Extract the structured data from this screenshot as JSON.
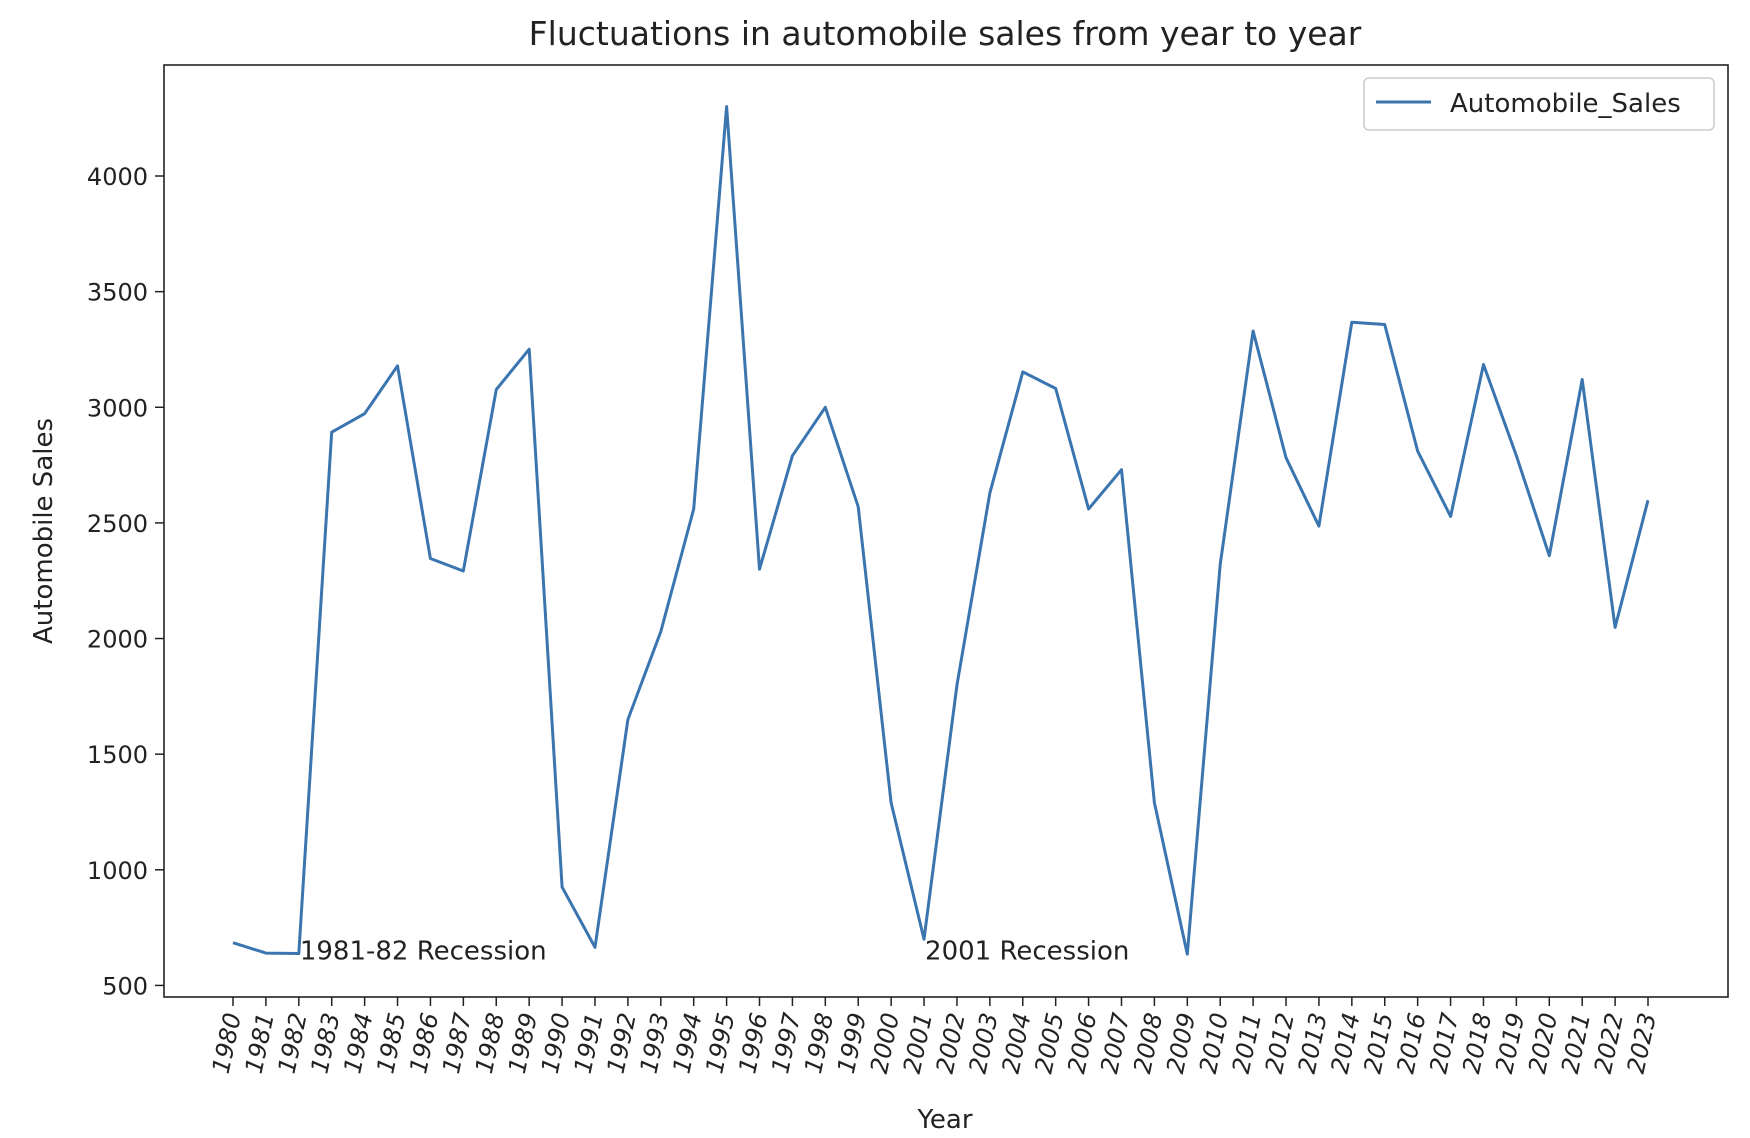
{
  "chart_data": {
    "type": "line",
    "title": "Fluctuations in automobile sales from year to year",
    "xlabel": "Year",
    "ylabel": "Automobile Sales",
    "x": [
      "1980",
      "1981",
      "1982",
      "1983",
      "1984",
      "1985",
      "1986",
      "1987",
      "1988",
      "1989",
      "1990",
      "1991",
      "1992",
      "1993",
      "1994",
      "1995",
      "1996",
      "1997",
      "1998",
      "1999",
      "2000",
      "2001",
      "2002",
      "2003",
      "2004",
      "2005",
      "2006",
      "2007",
      "2008",
      "2009",
      "2010",
      "2011",
      "2012",
      "2013",
      "2014",
      "2015",
      "2016",
      "2017",
      "2018",
      "2019",
      "2020",
      "2021",
      "2022",
      "2023"
    ],
    "series": [
      {
        "name": "Automobile_Sales",
        "color": "#3a75b0",
        "values": [
          685,
          640,
          638,
          2892,
          2972,
          3179,
          2346,
          2292,
          3077,
          3251,
          925,
          665,
          1650,
          2030,
          2560,
          4300,
          2300,
          2790,
          3000,
          2570,
          1290,
          700,
          1800,
          2630,
          3153,
          3081,
          2560,
          2730,
          1290,
          635,
          2320,
          3330,
          2782,
          2486,
          3368,
          3358,
          2810,
          2528,
          3185,
          2790,
          2358,
          3120,
          2048,
          2598
        ]
      }
    ],
    "yticks": [
      500,
      1000,
      1500,
      2000,
      2500,
      3000,
      3500,
      4000
    ],
    "ylim": [
      450,
      4480
    ],
    "grid": false,
    "legend": {
      "position": "top-right"
    },
    "annotations": [
      {
        "text": "1981-82 Recession",
        "x": "1982",
        "y": 650
      },
      {
        "text": "2001 Recession",
        "x": "2001",
        "y": 650
      }
    ]
  }
}
